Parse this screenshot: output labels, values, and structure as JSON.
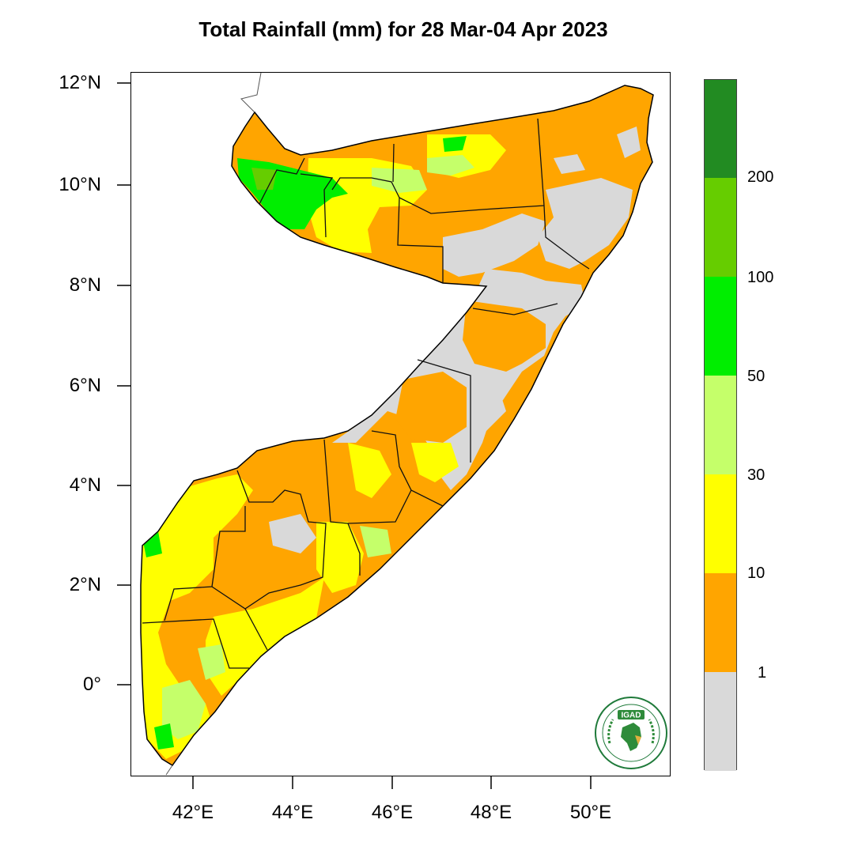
{
  "title": "Total Rainfall (mm) for 28 Mar-04 Apr 2023",
  "y_axis_labels": [
    "12°N",
    "10°N",
    "8°N",
    "6°N",
    "4°N",
    "2°N",
    "0°"
  ],
  "x_axis_labels": [
    "42°E",
    "44°E",
    "46°E",
    "48°E",
    "50°E"
  ],
  "legend": {
    "thresholds": [
      "200",
      "100",
      "50",
      "30",
      "10",
      "1"
    ],
    "bins": [
      {
        "range": ">200",
        "color": "#228B22"
      },
      {
        "range": "100-200",
        "color": "#66CD00"
      },
      {
        "range": "50-100",
        "color": "#00EE00"
      },
      {
        "range": "30-50",
        "color": "#C5FF6A"
      },
      {
        "range": "10-30",
        "color": "#FFFF00"
      },
      {
        "range": "1-10",
        "color": "#FFA500"
      },
      {
        "range": "<1",
        "color": "#D9D9D9"
      }
    ]
  },
  "logo": {
    "text": "IGAD",
    "ring_text": "INTERGOVERNMENTAL AUTHORITY ON DEVELOPMENT"
  }
}
